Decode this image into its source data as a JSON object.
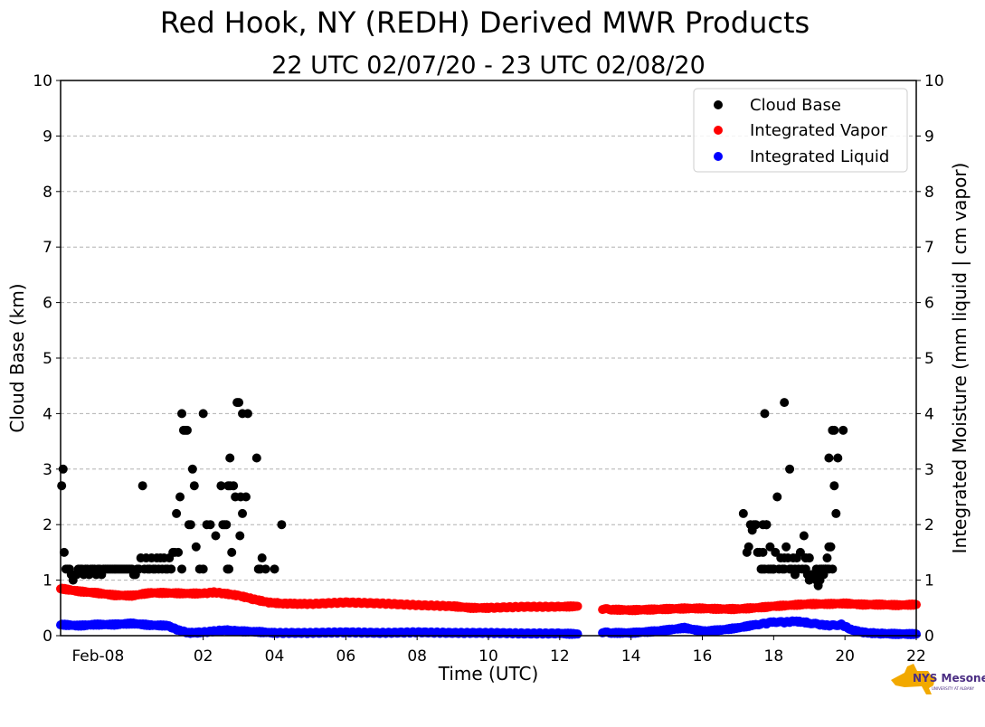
{
  "chart_data": {
    "type": "scatter",
    "title": "Red Hook, NY (REDH) Derived MWR Products",
    "subtitle": "22 UTC 02/07/20 - 23 UTC 02/08/20",
    "xlabel": "Time (UTC)",
    "ylabel": "Cloud Base (km)",
    "ylabel_right": "Integrated Moisture (mm liquid | cm vapor)",
    "xlim": [
      22.0,
      46.0
    ],
    "ylim": [
      0,
      10
    ],
    "yticks": [
      0,
      1,
      2,
      3,
      4,
      5,
      6,
      7,
      8,
      9,
      10
    ],
    "yticks_right": [
      0,
      1,
      2,
      3,
      4,
      5,
      6,
      7,
      8,
      9,
      10
    ],
    "xticks": [
      {
        "x": 23.05,
        "label": "Feb-08"
      },
      {
        "x": 26.0,
        "label": "02"
      },
      {
        "x": 28.0,
        "label": "04"
      },
      {
        "x": 30.0,
        "label": "06"
      },
      {
        "x": 32.0,
        "label": "08"
      },
      {
        "x": 34.0,
        "label": "10"
      },
      {
        "x": 36.0,
        "label": "12"
      },
      {
        "x": 38.0,
        "label": "14"
      },
      {
        "x": 40.0,
        "label": "16"
      },
      {
        "x": 42.0,
        "label": "18"
      },
      {
        "x": 44.0,
        "label": "20"
      },
      {
        "x": 46.0,
        "label": "22"
      }
    ],
    "grid": true,
    "legend_position": "top-right",
    "series": [
      {
        "name": "Cloud Base",
        "color": "#000000",
        "x": [
          22.03,
          22.07,
          22.1,
          22.15,
          22.2,
          22.25,
          22.3,
          22.35,
          22.4,
          22.45,
          22.5,
          22.55,
          22.6,
          22.65,
          22.7,
          22.75,
          22.8,
          22.85,
          22.9,
          22.95,
          23.0,
          23.05,
          23.1,
          23.15,
          23.2,
          23.25,
          23.3,
          23.35,
          23.4,
          23.45,
          23.5,
          23.55,
          23.6,
          23.65,
          23.7,
          23.75,
          23.8,
          23.85,
          23.9,
          23.95,
          24.0,
          24.05,
          24.1,
          24.15,
          24.2,
          24.25,
          24.3,
          24.35,
          24.4,
          24.45,
          24.5,
          24.55,
          24.6,
          24.65,
          24.7,
          24.75,
          24.8,
          24.85,
          24.9,
          24.95,
          25.0,
          25.05,
          25.1,
          25.15,
          25.2,
          25.25,
          25.3,
          25.35,
          25.4,
          25.45,
          25.5,
          25.55,
          25.6,
          25.65,
          25.7,
          25.75,
          25.8,
          25.9,
          26.0,
          26.1,
          26.2,
          26.35,
          26.5,
          26.6,
          26.7,
          26.75,
          26.8,
          26.85,
          26.9,
          26.95,
          27.0,
          27.05,
          27.1,
          27.2,
          27.25,
          27.5,
          27.55,
          27.6,
          27.65,
          27.75,
          28.0,
          27.03,
          26.0,
          26.65,
          26.55,
          26.68,
          26.72,
          28.2,
          27.1,
          25.4,
          26.75
        ],
        "y": [
          2.7,
          3.0,
          1.5,
          1.2,
          1.2,
          1.2,
          1.1,
          1.0,
          1.1,
          1.1,
          1.2,
          1.2,
          1.2,
          1.1,
          1.2,
          1.2,
          1.1,
          1.2,
          1.2,
          1.2,
          1.1,
          1.2,
          1.2,
          1.1,
          1.2,
          1.2,
          1.2,
          1.2,
          1.2,
          1.2,
          1.2,
          1.2,
          1.2,
          1.2,
          1.2,
          1.2,
          1.2,
          1.2,
          1.2,
          1.2,
          1.2,
          1.1,
          1.1,
          1.2,
          1.2,
          1.4,
          2.7,
          1.2,
          1.4,
          1.2,
          1.2,
          1.4,
          1.2,
          1.2,
          1.4,
          1.2,
          1.4,
          1.2,
          1.4,
          1.2,
          1.2,
          1.4,
          1.2,
          1.5,
          1.5,
          2.2,
          1.5,
          2.5,
          4.0,
          3.7,
          3.7,
          3.7,
          2.0,
          2.0,
          3.0,
          2.7,
          1.6,
          1.2,
          4.0,
          2.0,
          2.0,
          1.8,
          2.7,
          2.0,
          2.7,
          3.2,
          1.5,
          2.7,
          2.5,
          4.2,
          4.2,
          2.5,
          4.0,
          2.5,
          4.0,
          3.2,
          1.2,
          1.2,
          1.4,
          1.2,
          1.2,
          1.8,
          1.2,
          2.0,
          2.0,
          1.2,
          1.2,
          2.0,
          2.2,
          1.2,
          2.7
        ]
      },
      {
        "name": "Cloud Base (Feb-08 afternoon)",
        "legend": false,
        "color": "#000000",
        "x": [
          41.15,
          41.25,
          41.3,
          41.35,
          41.4,
          41.45,
          41.5,
          41.55,
          41.6,
          41.65,
          41.7,
          41.75,
          41.8,
          41.85,
          41.9,
          41.95,
          42.0,
          42.05,
          42.1,
          42.15,
          42.2,
          42.25,
          42.3,
          42.35,
          42.4,
          42.45,
          42.5,
          42.55,
          42.6,
          42.65,
          42.7,
          42.75,
          42.8,
          42.85,
          42.9,
          42.95,
          43.0,
          43.05,
          43.1,
          43.15,
          43.2,
          43.25,
          43.3,
          43.35,
          43.4,
          43.45,
          43.5,
          43.55,
          43.6,
          43.65,
          43.7,
          43.75,
          43.8,
          43.95,
          41.7,
          41.75,
          41.8,
          41.9,
          42.0,
          42.3,
          42.6,
          42.9,
          43.0,
          43.5,
          43.55,
          43.6,
          43.45,
          43.4,
          43.3,
          43.2,
          43.1,
          43.0,
          42.9
        ],
        "y": [
          2.2,
          1.5,
          1.6,
          2.0,
          1.9,
          2.0,
          2.0,
          1.5,
          1.5,
          1.2,
          2.0,
          4.0,
          2.0,
          1.2,
          1.6,
          1.2,
          1.2,
          1.5,
          2.5,
          1.2,
          1.4,
          1.2,
          1.4,
          1.6,
          1.4,
          1.2,
          1.2,
          1.4,
          1.1,
          1.4,
          1.2,
          1.5,
          1.2,
          1.8,
          1.2,
          1.1,
          1.4,
          1.1,
          1.1,
          1.1,
          1.0,
          1.1,
          1.0,
          1.2,
          1.1,
          1.2,
          1.2,
          1.6,
          1.6,
          1.2,
          3.7,
          2.2,
          3.2,
          3.7,
          1.2,
          1.2,
          2.0,
          1.2,
          1.2,
          1.2,
          1.2,
          1.4,
          1.4,
          1.4,
          1.2,
          1.6,
          1.2,
          1.2,
          1.2,
          1.2,
          1.1,
          1.0,
          1.4
        ],
        "extra_points": [
          [
            42.3,
            4.2
          ],
          [
            41.7,
            1.5
          ],
          [
            42.45,
            3.0
          ],
          [
            43.7,
            2.7
          ],
          [
            43.65,
            3.7
          ],
          [
            43.55,
            3.2
          ],
          [
            43.25,
            0.9
          ]
        ]
      },
      {
        "name": "Integrated Vapor",
        "color": "#ff0000",
        "segments": [
          {
            "x": [
              22.0,
              22.5,
              23.0,
              23.5,
              24.0,
              24.5,
              25.0,
              25.5,
              26.0,
              26.3,
              26.6,
              27.0,
              27.4,
              27.8,
              28.2,
              29.0,
              30.0,
              31.0,
              32.0,
              33.0,
              33.5,
              34.0,
              35.0,
              36.0,
              36.5
            ],
            "y": [
              0.85,
              0.8,
              0.77,
              0.73,
              0.72,
              0.77,
              0.77,
              0.76,
              0.76,
              0.78,
              0.76,
              0.72,
              0.66,
              0.6,
              0.58,
              0.57,
              0.6,
              0.58,
              0.55,
              0.53,
              0.5,
              0.5,
              0.52,
              0.52,
              0.53
            ]
          },
          {
            "x": [
              37.2,
              37.5,
              38.0,
              38.5,
              39.0,
              39.5,
              40.0,
              40.5,
              41.0,
              41.5,
              42.0,
              42.5,
              43.0,
              43.5,
              44.0,
              44.5,
              45.0,
              45.5,
              46.0
            ],
            "y": [
              0.48,
              0.47,
              0.46,
              0.47,
              0.48,
              0.49,
              0.49,
              0.48,
              0.48,
              0.5,
              0.53,
              0.55,
              0.57,
              0.57,
              0.58,
              0.56,
              0.56,
              0.55,
              0.56
            ]
          }
        ]
      },
      {
        "name": "Integrated Liquid",
        "color": "#0000ff",
        "segments": [
          {
            "x": [
              22.0,
              22.5,
              23.0,
              23.5,
              24.0,
              24.5,
              25.0,
              25.3,
              25.6,
              26.0,
              26.3,
              26.6,
              27.0,
              27.5,
              28.0,
              29.0,
              30.0,
              31.0,
              32.0,
              33.0,
              34.0,
              35.0,
              36.0,
              36.5
            ],
            "y": [
              0.2,
              0.18,
              0.2,
              0.2,
              0.22,
              0.19,
              0.18,
              0.1,
              0.05,
              0.06,
              0.08,
              0.1,
              0.08,
              0.07,
              0.05,
              0.05,
              0.06,
              0.05,
              0.06,
              0.05,
              0.05,
              0.04,
              0.04,
              0.03
            ]
          },
          {
            "x": [
              37.2,
              37.5,
              38.0,
              38.5,
              39.0,
              39.5,
              40.0,
              40.5,
              41.0,
              41.5,
              41.8,
              42.0,
              42.3,
              42.6,
              43.0,
              43.3,
              43.6,
              43.9,
              44.2,
              44.6,
              45.0,
              45.5,
              46.0
            ],
            "y": [
              0.06,
              0.05,
              0.05,
              0.07,
              0.1,
              0.14,
              0.08,
              0.1,
              0.14,
              0.2,
              0.22,
              0.25,
              0.24,
              0.26,
              0.23,
              0.2,
              0.18,
              0.2,
              0.1,
              0.05,
              0.04,
              0.03,
              0.03
            ]
          }
        ]
      }
    ],
    "legend_entries": [
      "Cloud Base",
      "Integrated Vapor",
      "Integrated Liquid"
    ]
  },
  "logo": {
    "text": "NYS Mesonet",
    "subtext": "UNIVERSITY AT ALBANY",
    "state_color": "#f2a900",
    "text_color": "#4b2e83"
  }
}
